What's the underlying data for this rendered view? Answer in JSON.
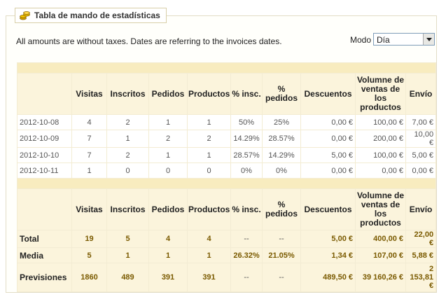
{
  "panel": {
    "title": "Tabla de mando de estadísticas"
  },
  "note": "All amounts are without taxes. Dates are referring to the invoices dates.",
  "mode": {
    "label": "Modo",
    "selected": "Día"
  },
  "columns": [
    "Visitas",
    "Inscritos",
    "Pedidos",
    "Productos",
    "% insc.",
    "% pedidos",
    "Descuentos",
    "Volumne de ventas de los productos",
    "Envío"
  ],
  "rows": [
    {
      "date": "2012-10-08",
      "visitas": "4",
      "inscritos": "2",
      "pedidos": "1",
      "productos": "1",
      "pinsc": "50%",
      "pped": "25%",
      "descuentos": "0,00 €",
      "ventas": "100,00 €",
      "envio": "7,00 €"
    },
    {
      "date": "2012-10-09",
      "visitas": "7",
      "inscritos": "1",
      "pedidos": "2",
      "productos": "2",
      "pinsc": "14.29%",
      "pped": "28.57%",
      "descuentos": "0,00 €",
      "ventas": "200,00 €",
      "envio": "10,00 €"
    },
    {
      "date": "2012-10-10",
      "visitas": "7",
      "inscritos": "2",
      "pedidos": "1",
      "productos": "1",
      "pinsc": "28.57%",
      "pped": "14.29%",
      "descuentos": "5,00 €",
      "ventas": "100,00 €",
      "envio": "5,00 €"
    },
    {
      "date": "2012-10-11",
      "visitas": "1",
      "inscritos": "0",
      "pedidos": "0",
      "productos": "0",
      "pinsc": "0%",
      "pped": "0%",
      "descuentos": "0,00 €",
      "ventas": "0,00 €",
      "envio": "0,00 €"
    }
  ],
  "summary": [
    {
      "label": "Total",
      "visitas": "19",
      "inscritos": "5",
      "pedidos": "4",
      "productos": "4",
      "pinsc": "--",
      "pped": "--",
      "descuentos": "5,00 €",
      "ventas": "400,00 €",
      "envio": "22,00 €"
    },
    {
      "label": "Media",
      "visitas": "5",
      "inscritos": "1",
      "pedidos": "1",
      "productos": "1",
      "pinsc": "26.32%",
      "pped": "21.05%",
      "descuentos": "1,34 €",
      "ventas": "107,00 €",
      "envio": "5,88 €"
    },
    {
      "label": "Previsiones",
      "visitas": "1860",
      "inscritos": "489",
      "pedidos": "391",
      "productos": "391",
      "pinsc": "--",
      "pped": "--",
      "descuentos": "489,50 €",
      "ventas": "39 160,26 €",
      "envio": "2 153,81 €"
    }
  ],
  "icons": {
    "legend": "coins-icon",
    "select": "chevron-down-icon"
  }
}
